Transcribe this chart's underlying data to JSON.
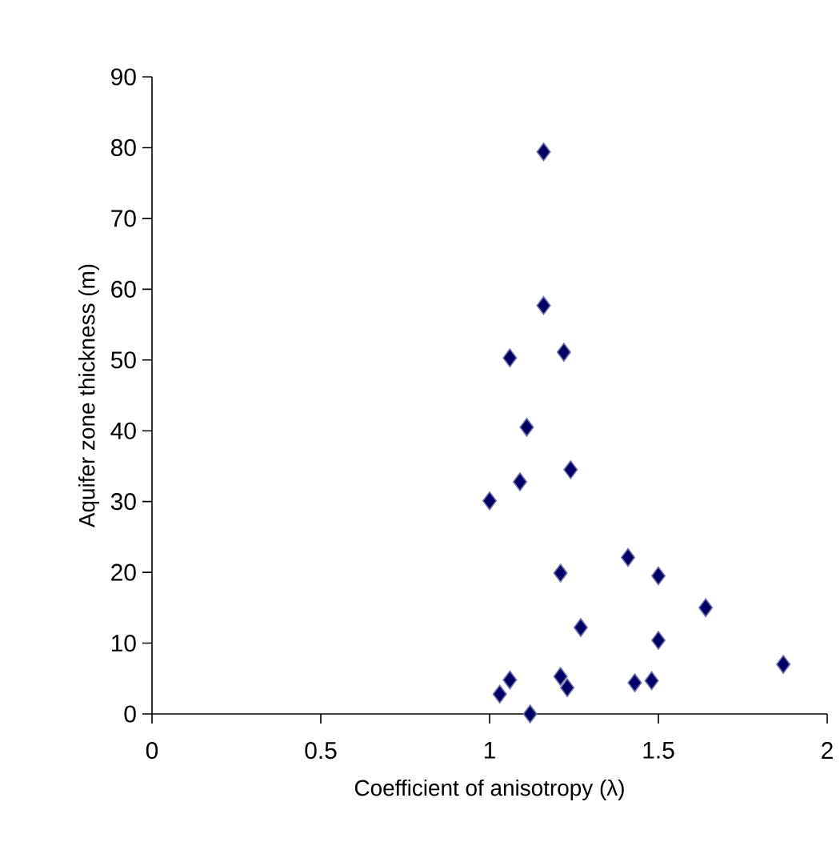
{
  "chart_data": {
    "type": "scatter",
    "xlabel": "Coefficient of anisotropy (λ)",
    "ylabel": "Aquifer zone thickness (m)",
    "x": [
      1.16,
      1.16,
      1.06,
      1.22,
      1.11,
      1.24,
      1.09,
      1.0,
      1.41,
      1.21,
      1.5,
      1.64,
      1.27,
      1.5,
      1.87,
      1.21,
      1.06,
      1.23,
      1.03,
      1.12,
      1.43,
      1.48
    ],
    "values": [
      79.4,
      57.7,
      50.3,
      51.1,
      40.5,
      34.5,
      32.8,
      30.1,
      22.1,
      19.9,
      19.5,
      15.0,
      12.2,
      10.4,
      7.0,
      5.3,
      4.8,
      3.7,
      2.8,
      0,
      4.4,
      4.7
    ],
    "color": "#000066",
    "marker": "diamond",
    "xlim": [
      0,
      2
    ],
    "xticks": [
      0,
      0.5,
      1,
      1.5,
      2
    ],
    "ylim": [
      0,
      90
    ],
    "yticks": [
      0,
      10,
      20,
      30,
      40,
      50,
      60,
      70,
      80,
      90
    ]
  }
}
